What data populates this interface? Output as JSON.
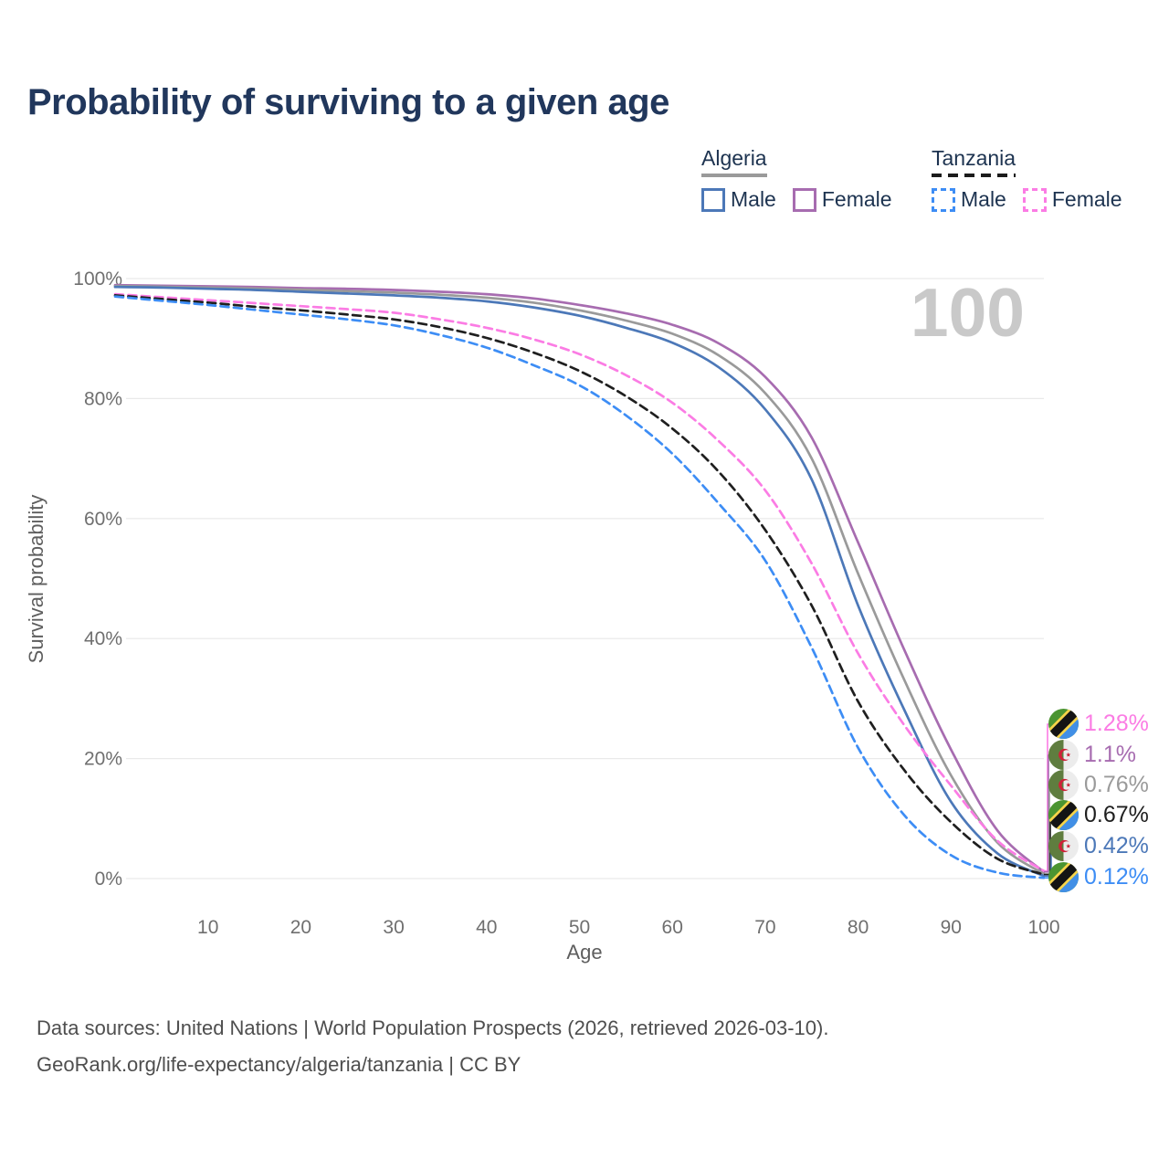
{
  "page": {
    "title": "Probability of surviving to a given age",
    "watermark_label": "100",
    "footer_line1": "Data sources: United Nations | World Population Prospects (2026, retrieved 2026-03-10).",
    "footer_line2": "GeoRank.org/life-expectancy/algeria/tanzania | CC BY"
  },
  "legend": {
    "algeria": {
      "label": "Algeria",
      "male_label": "Male",
      "female_label": "Female",
      "male_color": "#4c78b8",
      "female_color": "#a76cb0",
      "underline_color": "#9a9a9a",
      "style": "solid"
    },
    "tanzania": {
      "label": "Tanzania",
      "male_label": "Male",
      "female_label": "Female",
      "male_color": "#3d8df5",
      "female_color": "#fb7ce4",
      "underline_color": "#1b1b1b",
      "style": "dashed"
    }
  },
  "chart_data": {
    "type": "line",
    "title": "Probability of surviving to a given age",
    "xlabel": "Age",
    "ylabel": "Survival probability",
    "xlim": [
      0,
      100
    ],
    "ylim": [
      0,
      100
    ],
    "grid": true,
    "legend_position": "top-right",
    "x_ticks": [
      10,
      20,
      30,
      40,
      50,
      60,
      70,
      80,
      90,
      100
    ],
    "y_ticks": [
      {
        "v": 0,
        "label": "0%"
      },
      {
        "v": 20,
        "label": "20%"
      },
      {
        "v": 40,
        "label": "40%"
      },
      {
        "v": 60,
        "label": "60%"
      },
      {
        "v": 80,
        "label": "80%"
      },
      {
        "v": 100,
        "label": "100%"
      }
    ],
    "x": [
      0,
      5,
      10,
      15,
      20,
      25,
      30,
      35,
      40,
      45,
      50,
      55,
      60,
      65,
      70,
      75,
      80,
      85,
      90,
      95,
      100
    ],
    "series": [
      {
        "name": "Tanzania Female",
        "country": "tanzania",
        "sex": "female",
        "color": "#fb7ce4",
        "dash": true,
        "end_label": "1.28%",
        "values": [
          97.4,
          96.9,
          96.4,
          95.9,
          95.4,
          94.9,
          94.3,
          93.2,
          91.8,
          89.9,
          87.4,
          83.9,
          79.3,
          72.9,
          64.7,
          52.5,
          37.5,
          25.5,
          15.5,
          6.3,
          1.28
        ]
      },
      {
        "name": "Algeria Female",
        "country": "algeria",
        "sex": "female",
        "color": "#a76cb0",
        "dash": false,
        "end_label": "1.1%",
        "values": [
          98.9,
          98.8,
          98.7,
          98.6,
          98.4,
          98.3,
          98.1,
          97.8,
          97.4,
          96.7,
          95.6,
          94.2,
          92.3,
          89.2,
          83.6,
          73.5,
          56.0,
          38.0,
          21.5,
          8.0,
          1.1
        ]
      },
      {
        "name": "Algeria",
        "country": "algeria",
        "sex": "both",
        "color": "#9a9a9a",
        "dash": false,
        "end_label": "0.76%",
        "values": [
          98.75,
          98.65,
          98.5,
          98.35,
          98.15,
          97.9,
          97.65,
          97.3,
          96.8,
          96.0,
          94.7,
          93.0,
          90.8,
          87.2,
          80.9,
          70.0,
          50.8,
          33.0,
          17.2,
          6.0,
          0.76
        ]
      },
      {
        "name": "Tanzania",
        "country": "tanzania",
        "sex": "both",
        "color": "#1f1f1f",
        "dash": true,
        "end_label": "0.67%",
        "values": [
          97.2,
          96.6,
          96.0,
          95.3,
          94.7,
          94.0,
          93.2,
          91.9,
          90.1,
          87.7,
          84.6,
          80.4,
          75.0,
          67.8,
          58.1,
          45.5,
          29.5,
          18.0,
          9.4,
          3.3,
          0.67
        ]
      },
      {
        "name": "Algeria Male",
        "country": "algeria",
        "sex": "male",
        "color": "#4c78b8",
        "dash": false,
        "end_label": "0.42%",
        "values": [
          98.6,
          98.5,
          98.3,
          98.1,
          97.8,
          97.5,
          97.2,
          96.8,
          96.2,
          95.2,
          93.8,
          91.8,
          89.3,
          85.2,
          78.2,
          66.5,
          45.5,
          28.0,
          12.8,
          4.2,
          0.42
        ]
      },
      {
        "name": "Tanzania Male",
        "country": "tanzania",
        "sex": "male",
        "color": "#3d8df5",
        "dash": true,
        "end_label": "0.12%",
        "values": [
          97.0,
          96.3,
          95.6,
          94.8,
          94.0,
          93.2,
          92.2,
          90.6,
          88.5,
          85.6,
          82.2,
          77.2,
          70.8,
          62.5,
          53.0,
          38.5,
          21.8,
          10.5,
          3.9,
          1.0,
          0.12
        ]
      }
    ]
  }
}
